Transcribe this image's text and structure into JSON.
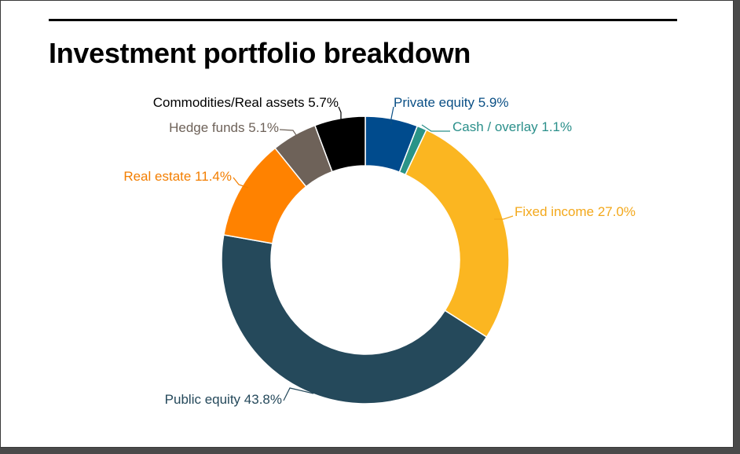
{
  "title": "Investment portfolio breakdown",
  "chart_data": {
    "type": "pie",
    "donut": true,
    "title": "Investment portfolio breakdown",
    "slices": [
      {
        "name": "Private equity",
        "value": 5.9,
        "label": "Private equity 5.9%",
        "color": "#004b8d",
        "label_color": "#0a4f85"
      },
      {
        "name": "Cash / overlay",
        "value": 1.1,
        "label": "Cash / overlay 1.1%",
        "color": "#2a9488",
        "label_color": "#2a8f8a"
      },
      {
        "name": "Fixed income",
        "value": 27.0,
        "label": "Fixed income 27.0%",
        "color": "#fbb621",
        "label_color": "#f3a81b"
      },
      {
        "name": "Public equity",
        "value": 43.8,
        "label": "Public equity 43.8%",
        "color": "#25495b",
        "label_color": "#25495b"
      },
      {
        "name": "Real estate",
        "value": 11.4,
        "label": "Real estate 11.4%",
        "color": "#ff8200",
        "label_color": "#f37e00"
      },
      {
        "name": "Hedge funds",
        "value": 5.1,
        "label": "Hedge funds 5.1%",
        "color": "#6e6259",
        "label_color": "#6e6259"
      },
      {
        "name": "Commodities/Real assets",
        "value": 5.7,
        "label": "Commodities/Real assets 5.7%",
        "color": "#000000",
        "label_color": "#000000"
      }
    ],
    "start_angle": "12 o'clock",
    "direction": "clockwise"
  }
}
